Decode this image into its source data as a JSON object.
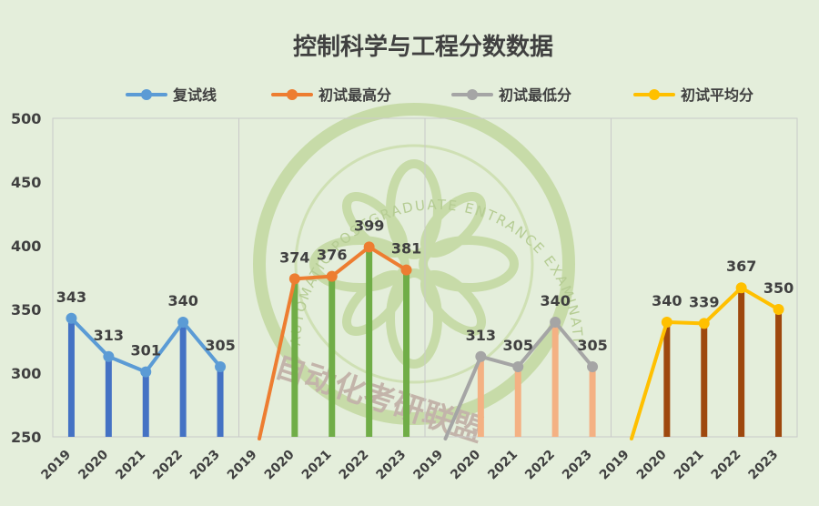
{
  "chart_data": {
    "type": "line",
    "title": "控制科学与工程分数数据",
    "ylim": [
      250,
      500
    ],
    "yticks": [
      250,
      300,
      350,
      400,
      450,
      500
    ],
    "grid": false,
    "legend_position": "top",
    "panels": [
      {
        "series_name": "复试线",
        "x": [
          "2019",
          "2020",
          "2021",
          "2022",
          "2023"
        ],
        "values": [
          343,
          313,
          301,
          340,
          305
        ],
        "line_color": "#5b9bd5",
        "bar_color": "#4472c4"
      },
      {
        "series_name": "初试最高分",
        "x": [
          "2019",
          "2020",
          "2021",
          "2022",
          "2023"
        ],
        "values": [
          null,
          374,
          376,
          399,
          381
        ],
        "line_color": "#ed7d31",
        "bar_color": "#70ad47"
      },
      {
        "series_name": "初试最低分",
        "x": [
          "2019",
          "2020",
          "2021",
          "2022",
          "2023"
        ],
        "values": [
          null,
          313,
          305,
          340,
          305
        ],
        "line_color": "#a5a5a5",
        "bar_color": "#f4b183"
      },
      {
        "series_name": "初试平均分",
        "x": [
          "2019",
          "2020",
          "2021",
          "2022",
          "2023"
        ],
        "values": [
          null,
          340,
          339,
          367,
          350
        ],
        "line_color": "#ffc000",
        "bar_color": "#9e480e"
      }
    ]
  },
  "watermark": {
    "ring_text": "AUTOMATIC POSTGRADUATE ENTRANCE EXAMINATION ALLIANCE",
    "chinese_text": "自动化考研联盟"
  }
}
